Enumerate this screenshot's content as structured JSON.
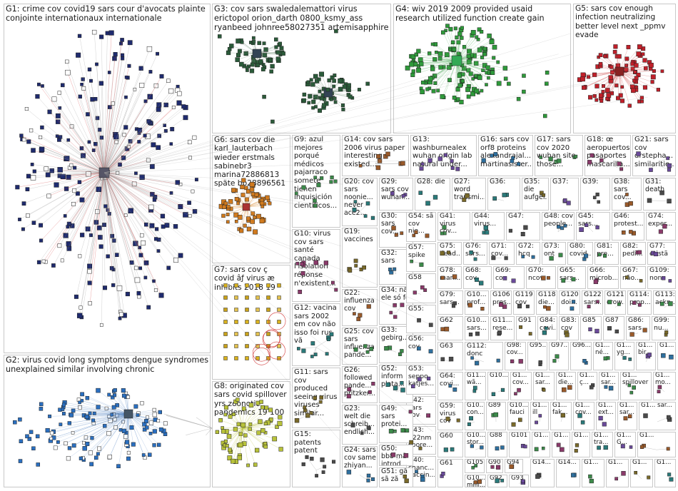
{
  "colors": {
    "G1": "#1f2b6e",
    "G2": "#2a6fc0",
    "G3": "#2b5b3a",
    "G4": "#2e9a3a",
    "G5": "#c0202a",
    "G6": "#d07a1e",
    "G7": "#d9b21f",
    "G8": "#b8c23a",
    "edge_gray": "#9a9a9a",
    "edge_red": "#d23b3b"
  },
  "groups": [
    {
      "id": "G1",
      "label": "G1: crime cov covid19 sars cour d'avocats plainte conjointe internationaux internationale"
    },
    {
      "id": "G2",
      "label": "G2: virus covid long symptoms dengue syndromes unexplained similar involving chronic"
    },
    {
      "id": "G3",
      "label": "G3: cov sars swaledalemattori virus erictopol orion_darth 0800_ksmy_ass ryanbeed johnree58027351 artemisapphire"
    },
    {
      "id": "G4",
      "label": "G4: wiv 2019 2009 provided usaid research utilized function create gain"
    },
    {
      "id": "G5",
      "label": "G5: sars cov enough infection neutralizing better level next _ppmv evade"
    },
    {
      "id": "G6",
      "label": "G6: sars cov die karl_lauterbach wieder erstmals sabinebr3 marina72886813 späte bb28896561"
    },
    {
      "id": "G7",
      "label": "G7: sars cov ç covid âƒ virus æ inhibits 2018 19"
    },
    {
      "id": "G8",
      "label": "G8: originated cov sars covid spillover yrs zoonotic pandemics 19 100"
    },
    {
      "id": "G9",
      "label": "G9: azul mejores porqué médicos pajarraco somete tienen inquisición científicos..."
    },
    {
      "id": "G10",
      "label": "G10: virus cov sars santé canada l'isolation réponse n'existent..."
    },
    {
      "id": "G11",
      "label": "G11: sars cov produced seeing virus viruses similar..."
    },
    {
      "id": "G12",
      "label": "G12: vacina sars 2002 em cov não isso foi rus vã"
    },
    {
      "id": "G13",
      "label": "G13: washburnealex wuhan origin lab natural under..."
    },
    {
      "id": "G14",
      "label": "G14: cov sars 2006 virus paper interesting existed..."
    },
    {
      "id": "G15",
      "label": "G15: patents patent"
    },
    {
      "id": "G16",
      "label": "G16: sars cov orf8 proteins alexandrajal... martinasister..."
    },
    {
      "id": "G17",
      "label": "G17: sars cov 2020 wuhan site those..."
    },
    {
      "id": "G18",
      "label": "G18: œ aeropuertos pasaportes mascarilla..."
    },
    {
      "id": "G19",
      "label": "G19: vaccines"
    },
    {
      "id": "G20",
      "label": "G20: cov sars noonie... never ace2..."
    },
    {
      "id": "G21",
      "label": "G21: sars cov drstepha... similaritie..."
    },
    {
      "id": "G22",
      "label": "G22: influenza cov"
    },
    {
      "id": "G23",
      "label": "G23: welt die schreib... endlich..."
    },
    {
      "id": "G24",
      "label": "G24: sars cov same zhiyan..."
    },
    {
      "id": "G25",
      "label": "G25: cov sars influenza pande..."
    },
    {
      "id": "G26",
      "label": "G26: followed pande... pritzker..."
    },
    {
      "id": "G27",
      "label": "G27: word transmi..."
    },
    {
      "id": "G28",
      "label": "G28: die"
    },
    {
      "id": "G29",
      "label": "G29: sars cov wuhan..."
    },
    {
      "id": "G30",
      "label": "G30: sars cov..."
    },
    {
      "id": "G31",
      "label": "G31: death"
    },
    {
      "id": "G32",
      "label": "G32: sars"
    },
    {
      "id": "G33",
      "label": "G33: gebirg..."
    },
    {
      "id": "G34",
      "label": "G34: não ele só foi"
    },
    {
      "id": "G35",
      "label": "G35: die aufgef..."
    },
    {
      "id": "G36",
      "label": "G36:"
    },
    {
      "id": "G37",
      "label": "G37:"
    },
    {
      "id": "G38",
      "label": "G38: sars cov..."
    },
    {
      "id": "G39",
      "label": "G39:"
    },
    {
      "id": "G40",
      "label": "G40: chanc... vaccin..."
    },
    {
      "id": "G41",
      "label": "G41: virus cov..."
    },
    {
      "id": "G42",
      "label": "G42: sars cov"
    },
    {
      "id": "G43",
      "label": "G43: 222nm spore..."
    },
    {
      "id": "G44",
      "label": "G44: virus..."
    },
    {
      "id": "G45",
      "label": "G45: sars..."
    },
    {
      "id": "G46",
      "label": "G46: protest..."
    },
    {
      "id": "G47",
      "label": "G47:"
    },
    {
      "id": "G48",
      "label": "G48: cov people..."
    },
    {
      "id": "G49",
      "label": "G49: sars protei..."
    },
    {
      "id": "G50",
      "label": "G50: bb8 mã introd..."
    },
    {
      "id": "G51",
      "label": "G51: gã sã zã"
    },
    {
      "id": "G52",
      "label": "G52: inform plata..."
    },
    {
      "id": "G53",
      "label": "G53: seppo katjes..."
    },
    {
      "id": "G54",
      "label": "G54: sã cov nie..."
    },
    {
      "id": "G55",
      "label": "G55:"
    },
    {
      "id": "G56",
      "label": "G56: cov"
    },
    {
      "id": "G57",
      "label": "G57: spike"
    },
    {
      "id": "G58",
      "label": "G58"
    },
    {
      "id": "G59",
      "label": "G59: virus cov"
    },
    {
      "id": "G60",
      "label": "G60"
    },
    {
      "id": "G61",
      "label": "G61"
    },
    {
      "id": "G62",
      "label": "G62"
    },
    {
      "id": "G63",
      "label": "G63"
    },
    {
      "id": "G64",
      "label": "G64: covi..."
    },
    {
      "id": "G65",
      "label": "G65: sars..."
    },
    {
      "id": "G66",
      "label": "G66: microb..."
    },
    {
      "id": "G67",
      "label": "G67: não..."
    },
    {
      "id": "G68",
      "label": "G68: cov"
    },
    {
      "id": "G69",
      "label": "G69: cov"
    },
    {
      "id": "G70",
      "label": "G70: ncov"
    },
    {
      "id": "G71",
      "label": "G71: cov..."
    },
    {
      "id": "G72",
      "label": "G72: hcq"
    },
    {
      "id": "G73",
      "label": "G73: ont"
    },
    {
      "id": "G74",
      "label": "G74: exper..."
    },
    {
      "id": "G75",
      "label": "G75: dead..."
    },
    {
      "id": "G76",
      "label": "G76: sars..."
    },
    {
      "id": "G77",
      "label": "G77: eristã"
    },
    {
      "id": "G78",
      "label": "G78: man..."
    },
    {
      "id": "G79",
      "label": "G79: sars..."
    },
    {
      "id": "G80",
      "label": "G80: covid..."
    },
    {
      "id": "G81",
      "label": "G81: pre..."
    },
    {
      "id": "G82",
      "label": "G82: pedi..."
    },
    {
      "id": "G83",
      "label": "G83: cov"
    },
    {
      "id": "G84",
      "label": "G84: covi..."
    },
    {
      "id": "G85",
      "label": "G85"
    },
    {
      "id": "G86",
      "label": "G86: sars"
    },
    {
      "id": "G87",
      "label": "G87"
    },
    {
      "id": "G88",
      "label": "G88"
    },
    {
      "id": "G89",
      "label": "G89"
    },
    {
      "id": "G90",
      "label": "G90"
    },
    {
      "id": "G91",
      "label": "G91"
    },
    {
      "id": "G92",
      "label": "G92"
    },
    {
      "id": "G93",
      "label": "G93"
    },
    {
      "id": "G94",
      "label": "G94"
    },
    {
      "id": "G95",
      "label": "G95..."
    },
    {
      "id": "G96",
      "label": "G96..."
    },
    {
      "id": "G97",
      "label": "G97..."
    },
    {
      "id": "G98",
      "label": "G98: cov..."
    },
    {
      "id": "G99",
      "label": "G99: nu..."
    },
    {
      "id": "G100",
      "label": "G10..."
    },
    {
      "id": "G101",
      "label": "G101"
    },
    {
      "id": "G102",
      "label": "G10... prof..."
    },
    {
      "id": "G103",
      "label": "G10... sars..."
    },
    {
      "id": "G104",
      "label": "G10... stor..."
    },
    {
      "id": "G105",
      "label": "G105"
    },
    {
      "id": "G106",
      "label": "G106 pres..."
    },
    {
      "id": "G107",
      "label": "G10... fauci"
    },
    {
      "id": "G108",
      "label": "G10... con..."
    },
    {
      "id": "G109",
      "label": "G109: non"
    },
    {
      "id": "G110",
      "label": "G10... milli..."
    },
    {
      "id": "G111",
      "label": "G11... rese..."
    },
    {
      "id": "G112",
      "label": "G112: donc"
    },
    {
      "id": "G113",
      "label": "G113: ackn..."
    },
    {
      "id": "G114",
      "label": "G114: prop..."
    },
    {
      "id": "G115",
      "label": "G11... covi..."
    },
    {
      "id": "G116",
      "label": "G11... wã..."
    },
    {
      "id": "G117",
      "label": "G1... ill"
    },
    {
      "id": "G118",
      "label": "G118: die..."
    },
    {
      "id": "G119",
      "label": "G119: cov"
    },
    {
      "id": "G120",
      "label": "G120: doi..."
    },
    {
      "id": "G121",
      "label": "G121: crow..."
    },
    {
      "id": "G122",
      "label": "G122: sars..."
    },
    {
      "id": "S01",
      "label": "G1... né..."
    },
    {
      "id": "S02",
      "label": "G1... cov..."
    },
    {
      "id": "S03",
      "label": "G1... sar..."
    },
    {
      "id": "S04",
      "label": "G1... yg..."
    },
    {
      "id": "S05",
      "label": "G1... bir..."
    },
    {
      "id": "S06",
      "label": "G1... die..."
    },
    {
      "id": "S07",
      "label": "G1... ç..."
    },
    {
      "id": "S08",
      "label": "G1... sar..."
    },
    {
      "id": "S09",
      "label": "G1... spillover"
    },
    {
      "id": "S10",
      "label": "G1... mo..."
    },
    {
      "id": "S11",
      "label": "G1... fak..."
    },
    {
      "id": "S12",
      "label": "G1... cov..."
    },
    {
      "id": "S13",
      "label": "G1... ext..."
    },
    {
      "id": "S14",
      "label": "G1... sar..."
    },
    {
      "id": "S15",
      "label": "G1... sar..."
    },
    {
      "id": "S16",
      "label": "G1..."
    },
    {
      "id": "S17",
      "label": "G1..."
    },
    {
      "id": "S18",
      "label": "G1..."
    },
    {
      "id": "S19",
      "label": "G1..."
    },
    {
      "id": "S20",
      "label": "G1... tra..."
    },
    {
      "id": "S21",
      "label": "G1... G..."
    },
    {
      "id": "S22",
      "label": "G1..."
    },
    {
      "id": "S23",
      "label": "G14..."
    },
    {
      "id": "S24",
      "label": "G14..."
    },
    {
      "id": "S25",
      "label": "G1..."
    },
    {
      "id": "S26",
      "label": "G1..."
    },
    {
      "id": "S27",
      "label": "G1..."
    },
    {
      "id": "S28",
      "label": "G1..."
    }
  ]
}
